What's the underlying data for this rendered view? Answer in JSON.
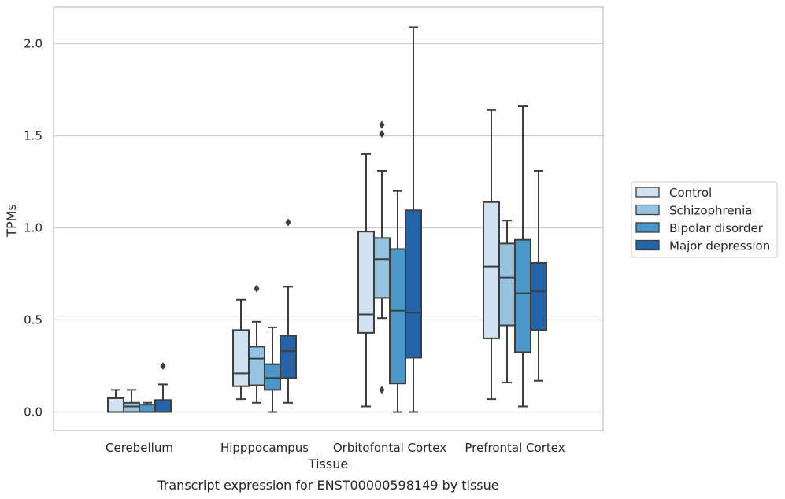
{
  "caption": "Transcript expression for ENST00000598149 by tissue",
  "chart_data": {
    "type": "boxplot",
    "xlabel": "Tissue",
    "ylabel": "TPMs",
    "ylim": [
      -0.1,
      2.2
    ],
    "yticks": [
      0.0,
      0.5,
      1.0,
      1.5,
      2.0
    ],
    "ytick_labels": [
      "0.0",
      "0.5",
      "1.0",
      "1.5",
      "2.0"
    ],
    "grid": "horizontal",
    "legend_position": "right",
    "categories": [
      "Cerebellum",
      "Hipppocampus",
      "Orbitofontal Cortex",
      "Prefrontal Cortex"
    ],
    "series": [
      {
        "name": "Control",
        "color": "#d0e1f2",
        "boxes": [
          {
            "whisker_low": 0.0,
            "q1": 0.0,
            "median": 0.0,
            "q3": 0.075,
            "whisker_high": 0.12,
            "fliers": []
          },
          {
            "whisker_low": 0.07,
            "q1": 0.14,
            "median": 0.21,
            "q3": 0.445,
            "whisker_high": 0.61,
            "fliers": []
          },
          {
            "whisker_low": 0.03,
            "q1": 0.43,
            "median": 0.53,
            "q3": 0.98,
            "whisker_high": 1.4,
            "fliers": []
          },
          {
            "whisker_low": 0.07,
            "q1": 0.4,
            "median": 0.79,
            "q3": 1.14,
            "whisker_high": 1.64,
            "fliers": []
          }
        ]
      },
      {
        "name": "Schizophrenia",
        "color": "#94c4df",
        "boxes": [
          {
            "whisker_low": 0.0,
            "q1": 0.0,
            "median": 0.03,
            "q3": 0.05,
            "whisker_high": 0.12,
            "fliers": []
          },
          {
            "whisker_low": 0.05,
            "q1": 0.145,
            "median": 0.29,
            "q3": 0.355,
            "whisker_high": 0.49,
            "fliers": [
              0.67
            ]
          },
          {
            "whisker_low": 0.51,
            "q1": 0.62,
            "median": 0.83,
            "q3": 0.945,
            "whisker_high": 1.31,
            "fliers": [
              1.51,
              1.56,
              0.12
            ]
          },
          {
            "whisker_low": 0.16,
            "q1": 0.47,
            "median": 0.73,
            "q3": 0.915,
            "whisker_high": 1.04,
            "fliers": []
          }
        ]
      },
      {
        "name": "Bipolar disorder",
        "color": "#4a98c9",
        "boxes": [
          {
            "whisker_low": 0.0,
            "q1": 0.0,
            "median": 0.0,
            "q3": 0.04,
            "whisker_high": 0.05,
            "fliers": []
          },
          {
            "whisker_low": 0.0,
            "q1": 0.12,
            "median": 0.185,
            "q3": 0.26,
            "whisker_high": 0.46,
            "fliers": []
          },
          {
            "whisker_low": 0.0,
            "q1": 0.155,
            "median": 0.55,
            "q3": 0.885,
            "whisker_high": 1.2,
            "fliers": []
          },
          {
            "whisker_low": 0.03,
            "q1": 0.325,
            "median": 0.645,
            "q3": 0.935,
            "whisker_high": 1.66,
            "fliers": []
          }
        ]
      },
      {
        "name": "Major depression",
        "color": "#2464a8",
        "boxes": [
          {
            "whisker_low": 0.0,
            "q1": 0.0,
            "median": 0.0,
            "q3": 0.065,
            "whisker_high": 0.15,
            "fliers": [
              0.25
            ]
          },
          {
            "whisker_low": 0.05,
            "q1": 0.185,
            "median": 0.33,
            "q3": 0.415,
            "whisker_high": 0.68,
            "fliers": [
              1.03
            ]
          },
          {
            "whisker_low": 0.0,
            "q1": 0.295,
            "median": 0.54,
            "q3": 1.095,
            "whisker_high": 2.09,
            "fliers": []
          },
          {
            "whisker_low": 0.17,
            "q1": 0.445,
            "median": 0.655,
            "q3": 0.81,
            "whisker_high": 1.31,
            "fliers": []
          }
        ]
      }
    ]
  }
}
